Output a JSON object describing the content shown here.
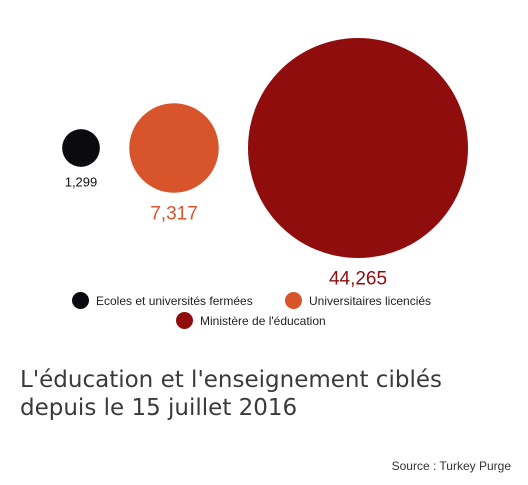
{
  "chart_data": {
    "type": "bubble",
    "title": "L'éducation et l'enseignement ciblés depuis le 15 juillet 2016",
    "source": "Source : Turkey Purge",
    "series": [
      {
        "name": "Ecoles et universités fermées",
        "value": 1299,
        "label": "1,299",
        "color": "#0b0a0f"
      },
      {
        "name": "Universitaires licenciés",
        "value": 7317,
        "label": "7,317",
        "color": "#d8542a"
      },
      {
        "name": "Ministère de l'éducation",
        "value": 44265,
        "label": "44,265",
        "color": "#8f0e0d"
      }
    ],
    "legend_position": "bottom"
  }
}
